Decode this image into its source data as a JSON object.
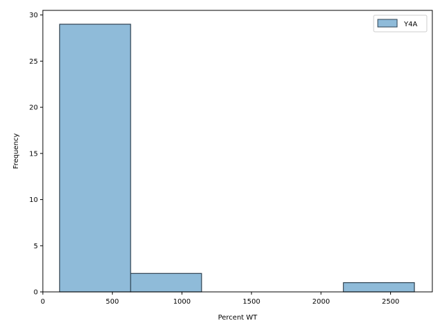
{
  "chart_data": {
    "type": "bar",
    "histogram": true,
    "bins": [
      {
        "x0": 121,
        "x1": 631,
        "count": 29
      },
      {
        "x0": 631,
        "x1": 1141,
        "count": 2
      },
      {
        "x0": 1141,
        "x1": 1651,
        "count": 0
      },
      {
        "x0": 1651,
        "x1": 2161,
        "count": 0
      },
      {
        "x0": 2161,
        "x1": 2671,
        "count": 1
      }
    ],
    "series": [
      {
        "name": "Y4A"
      }
    ],
    "xlabel": "Percent WT",
    "ylabel": "Frequency",
    "xlim": [
      0,
      2800
    ],
    "ylim": [
      0,
      30.5
    ],
    "xticks": [
      0,
      500,
      1000,
      1500,
      2000,
      2500
    ],
    "yticks": [
      0,
      5,
      10,
      15,
      20,
      25,
      30
    ],
    "legend": "top-right",
    "grid": false,
    "colors": {
      "bar_fill": "#8fbbd9",
      "bar_edge": "#2b3f4f"
    }
  }
}
